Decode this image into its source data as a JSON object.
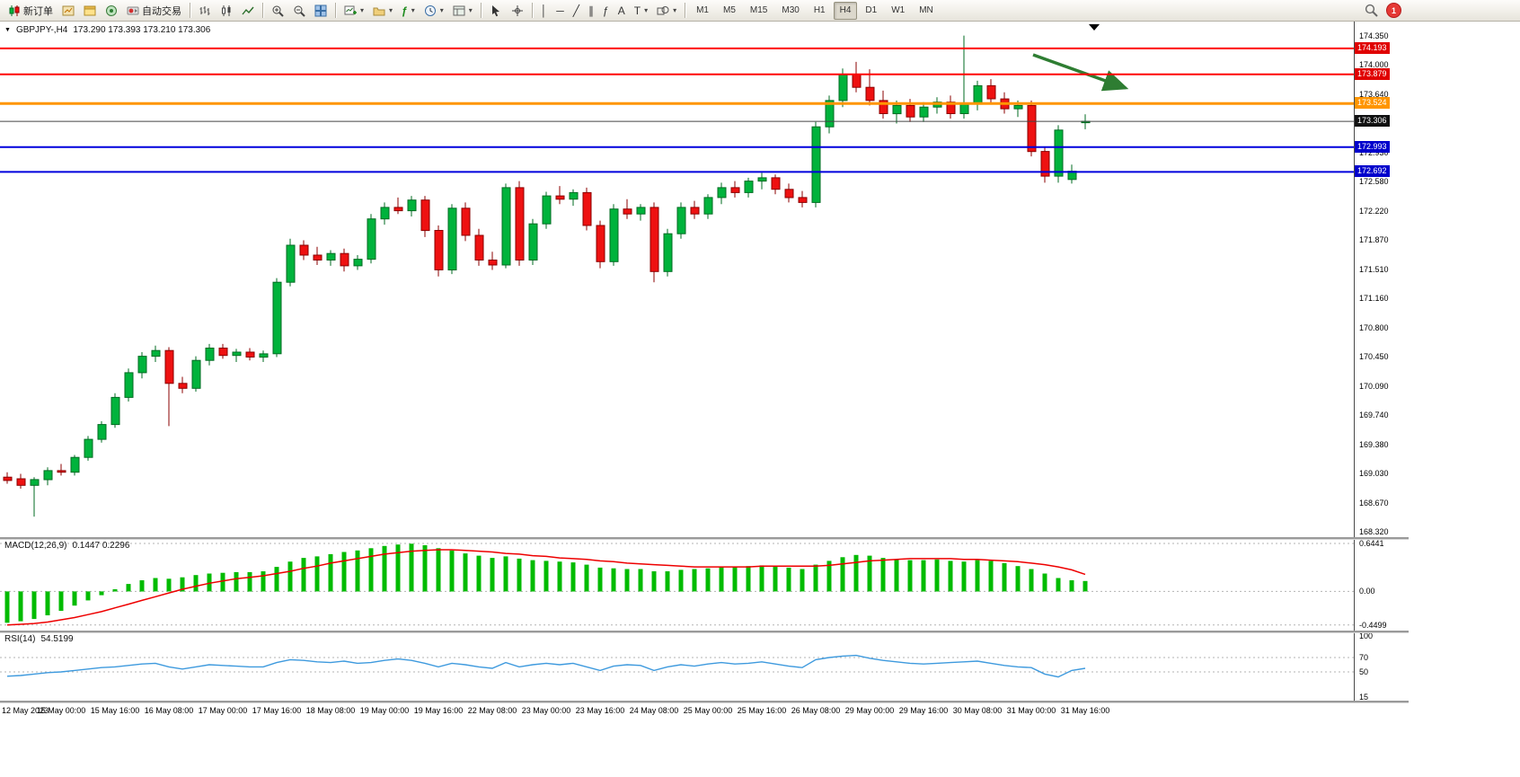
{
  "colors": {
    "candle_up": "#00b33c",
    "candle_up_border": "#006b22",
    "candle_down": "#ee1111",
    "candle_down_border": "#8b0000",
    "macd_histogram": "#00bb00",
    "macd_signal": "#ee0000",
    "rsi_line": "#3e9ade",
    "grid": "#b3b3b3",
    "arrow_annotation": "#2e7d32",
    "line_red": "#ff0000",
    "line_orange": "#ff9500",
    "line_blue": "#0000dd",
    "line_black": "#444444"
  },
  "toolbar": {
    "new_order_label": "新订单",
    "auto_trading_label": "自动交易",
    "timeframes": [
      "M1",
      "M5",
      "M15",
      "M30",
      "H1",
      "H4",
      "D1",
      "W1",
      "MN"
    ],
    "active_timeframe": "H4",
    "notification_count": "1"
  },
  "icons": {
    "caret": "▾",
    "dropdown_triangle": "▼",
    "text_tool": "A",
    "label_tool": "T",
    "vline": "│",
    "hline": "─",
    "trendline": "╱",
    "channel": "∥",
    "fibonacci": "ƒ"
  },
  "chart": {
    "symbol_period": "GBPJPY-,H4",
    "ohlc": "173.290 173.393 173.210 173.306"
  },
  "price_axis": {
    "labels": [
      "174.350",
      "174.000",
      "173.640",
      "173.290",
      "172.930",
      "172.580",
      "172.220",
      "171.870",
      "171.510",
      "171.160",
      "170.800",
      "170.450",
      "170.090",
      "169.740",
      "169.380",
      "169.030",
      "168.670",
      "168.320"
    ]
  },
  "hlines": [
    {
      "price": 174.193,
      "label": "174.193",
      "color": "#ff0000",
      "width": 2,
      "badge_bg": "#e00000"
    },
    {
      "price": 173.879,
      "label": "173.879",
      "color": "#ff0000",
      "width": 2,
      "badge_bg": "#e00000"
    },
    {
      "price": 173.524,
      "label": "173.524",
      "color": "#ff9500",
      "width": 3,
      "badge_bg": "#ff9500"
    },
    {
      "price": 173.306,
      "label": "173.306",
      "color": "#444444",
      "width": 1,
      "badge_bg": "#111111"
    },
    {
      "price": 172.993,
      "label": "172.993",
      "color": "#0000dd",
      "width": 2,
      "badge_bg": "#0000cc"
    },
    {
      "price": 172.692,
      "label": "172.692",
      "color": "#0000dd",
      "width": 2,
      "badge_bg": "#0000cc"
    }
  ],
  "chart_data": {
    "type": "candlestick",
    "symbol": "GBPJPY",
    "timeframe": "H4",
    "price_range_visible": [
      168.32,
      174.35
    ],
    "time_labels": [
      "12 May 2023",
      "15 May 00:00",
      "15 May 16:00",
      "16 May 08:00",
      "17 May 00:00",
      "17 May 16:00",
      "18 May 08:00",
      "19 May 00:00",
      "19 May 16:00",
      "22 May 08:00",
      "23 May 00:00",
      "23 May 16:00",
      "24 May 08:00",
      "25 May 00:00",
      "25 May 16:00",
      "26 May 08:00",
      "29 May 00:00",
      "29 May 16:00",
      "30 May 08:00",
      "31 May 00:00",
      "31 May 16:00"
    ],
    "candles": [
      [
        168.98,
        169.04,
        168.9,
        168.94
      ],
      [
        168.96,
        169.02,
        168.84,
        168.88
      ],
      [
        168.88,
        168.98,
        168.5,
        168.95
      ],
      [
        168.95,
        169.1,
        168.88,
        169.06
      ],
      [
        169.06,
        169.14,
        169.0,
        169.04
      ],
      [
        169.04,
        169.25,
        169.0,
        169.22
      ],
      [
        169.22,
        169.48,
        169.18,
        169.44
      ],
      [
        169.44,
        169.66,
        169.4,
        169.62
      ],
      [
        169.62,
        170.0,
        169.58,
        169.95
      ],
      [
        169.95,
        170.3,
        169.9,
        170.25
      ],
      [
        170.25,
        170.5,
        170.18,
        170.45
      ],
      [
        170.45,
        170.58,
        170.38,
        170.52
      ],
      [
        170.52,
        170.56,
        169.6,
        170.12
      ],
      [
        170.12,
        170.2,
        170.0,
        170.06
      ],
      [
        170.06,
        170.45,
        170.02,
        170.4
      ],
      [
        170.4,
        170.6,
        170.34,
        170.55
      ],
      [
        170.55,
        170.6,
        170.42,
        170.46
      ],
      [
        170.46,
        170.54,
        170.38,
        170.5
      ],
      [
        170.5,
        170.55,
        170.4,
        170.44
      ],
      [
        170.44,
        170.52,
        170.38,
        170.48
      ],
      [
        170.48,
        171.4,
        170.44,
        171.35
      ],
      [
        171.35,
        171.88,
        171.3,
        171.8
      ],
      [
        171.8,
        171.86,
        171.62,
        171.68
      ],
      [
        171.68,
        171.78,
        171.56,
        171.62
      ],
      [
        171.62,
        171.74,
        171.55,
        171.7
      ],
      [
        171.7,
        171.76,
        171.48,
        171.55
      ],
      [
        171.55,
        171.68,
        171.5,
        171.63
      ],
      [
        171.63,
        172.18,
        171.58,
        172.12
      ],
      [
        172.12,
        172.32,
        172.05,
        172.26
      ],
      [
        172.26,
        172.38,
        172.18,
        172.22
      ],
      [
        172.22,
        172.4,
        172.15,
        172.35
      ],
      [
        172.35,
        172.4,
        171.9,
        171.98
      ],
      [
        171.98,
        172.04,
        171.42,
        171.5
      ],
      [
        171.5,
        172.3,
        171.45,
        172.25
      ],
      [
        172.25,
        172.32,
        171.85,
        171.92
      ],
      [
        171.92,
        172.0,
        171.55,
        171.62
      ],
      [
        171.62,
        171.72,
        171.5,
        171.56
      ],
      [
        171.56,
        172.55,
        171.52,
        172.5
      ],
      [
        172.5,
        172.58,
        171.55,
        171.62
      ],
      [
        171.62,
        172.12,
        171.56,
        172.06
      ],
      [
        172.06,
        172.45,
        172.0,
        172.4
      ],
      [
        172.4,
        172.52,
        172.3,
        172.36
      ],
      [
        172.36,
        172.48,
        172.28,
        172.44
      ],
      [
        172.44,
        172.5,
        171.98,
        172.04
      ],
      [
        172.04,
        172.1,
        171.52,
        171.6
      ],
      [
        171.6,
        172.3,
        171.55,
        172.24
      ],
      [
        172.24,
        172.36,
        172.12,
        172.18
      ],
      [
        172.18,
        172.3,
        172.1,
        172.26
      ],
      [
        172.26,
        172.32,
        171.35,
        171.48
      ],
      [
        171.48,
        172.0,
        171.42,
        171.94
      ],
      [
        171.94,
        172.32,
        171.88,
        172.26
      ],
      [
        172.26,
        172.34,
        172.12,
        172.18
      ],
      [
        172.18,
        172.42,
        172.12,
        172.38
      ],
      [
        172.38,
        172.56,
        172.3,
        172.5
      ],
      [
        172.5,
        172.58,
        172.38,
        172.44
      ],
      [
        172.44,
        172.62,
        172.38,
        172.58
      ],
      [
        172.58,
        172.68,
        172.48,
        172.62
      ],
      [
        172.62,
        172.66,
        172.42,
        172.48
      ],
      [
        172.48,
        172.55,
        172.32,
        172.38
      ],
      [
        172.38,
        172.46,
        172.26,
        172.32
      ],
      [
        172.32,
        173.3,
        172.26,
        173.24
      ],
      [
        173.24,
        173.62,
        173.16,
        173.56
      ],
      [
        173.56,
        173.95,
        173.48,
        173.88
      ],
      [
        173.88,
        174.03,
        173.66,
        173.72
      ],
      [
        173.72,
        173.94,
        173.5,
        173.56
      ],
      [
        173.56,
        173.68,
        173.34,
        173.4
      ],
      [
        173.4,
        173.56,
        173.28,
        173.5
      ],
      [
        173.5,
        173.58,
        173.3,
        173.36
      ],
      [
        173.36,
        173.54,
        173.3,
        173.48
      ],
      [
        173.48,
        173.6,
        173.4,
        173.54
      ],
      [
        173.54,
        173.62,
        173.34,
        173.4
      ],
      [
        173.4,
        174.35,
        173.34,
        173.52
      ],
      [
        173.52,
        173.8,
        173.44,
        173.74
      ],
      [
        173.74,
        173.82,
        173.52,
        173.58
      ],
      [
        173.58,
        173.66,
        173.4,
        173.46
      ],
      [
        173.46,
        173.56,
        173.36,
        173.5
      ],
      [
        173.5,
        173.56,
        172.88,
        172.94
      ],
      [
        172.94,
        173.0,
        172.56,
        172.64
      ],
      [
        172.64,
        173.26,
        172.56,
        173.2
      ],
      [
        172.6,
        172.78,
        172.55,
        172.7
      ],
      [
        173.29,
        173.393,
        173.21,
        173.306
      ]
    ],
    "macd": {
      "label": "MACD(12,26,9)",
      "values_text": "0.1447 0.2296",
      "axis_labels": [
        "0.6441",
        "0.00",
        "-0.4499"
      ],
      "grid_values": [
        0.6441,
        0,
        -0.4499
      ],
      "histogram": [
        -0.42,
        -0.4,
        -0.37,
        -0.32,
        -0.26,
        -0.19,
        -0.12,
        -0.05,
        0.03,
        0.1,
        0.15,
        0.18,
        0.17,
        0.19,
        0.22,
        0.24,
        0.25,
        0.26,
        0.26,
        0.27,
        0.33,
        0.4,
        0.45,
        0.47,
        0.5,
        0.53,
        0.55,
        0.58,
        0.61,
        0.63,
        0.64,
        0.62,
        0.58,
        0.55,
        0.51,
        0.48,
        0.45,
        0.47,
        0.44,
        0.42,
        0.41,
        0.4,
        0.39,
        0.36,
        0.32,
        0.31,
        0.3,
        0.3,
        0.27,
        0.27,
        0.29,
        0.3,
        0.31,
        0.33,
        0.33,
        0.34,
        0.35,
        0.34,
        0.32,
        0.3,
        0.36,
        0.41,
        0.46,
        0.49,
        0.48,
        0.45,
        0.43,
        0.42,
        0.42,
        0.43,
        0.41,
        0.4,
        0.42,
        0.41,
        0.38,
        0.34,
        0.3,
        0.24,
        0.18,
        0.15,
        0.14
      ],
      "signal": [
        -0.45,
        -0.44,
        -0.43,
        -0.41,
        -0.38,
        -0.35,
        -0.31,
        -0.27,
        -0.22,
        -0.17,
        -0.12,
        -0.07,
        -0.02,
        0.03,
        0.07,
        0.11,
        0.14,
        0.17,
        0.19,
        0.21,
        0.24,
        0.27,
        0.31,
        0.34,
        0.38,
        0.41,
        0.44,
        0.47,
        0.5,
        0.52,
        0.54,
        0.55,
        0.56,
        0.56,
        0.55,
        0.54,
        0.53,
        0.51,
        0.5,
        0.48,
        0.47,
        0.45,
        0.44,
        0.43,
        0.41,
        0.4,
        0.38,
        0.37,
        0.36,
        0.35,
        0.34,
        0.33,
        0.33,
        0.33,
        0.33,
        0.33,
        0.34,
        0.34,
        0.34,
        0.34,
        0.34,
        0.35,
        0.37,
        0.39,
        0.41,
        0.42,
        0.43,
        0.44,
        0.44,
        0.44,
        0.44,
        0.43,
        0.43,
        0.42,
        0.41,
        0.4,
        0.38,
        0.36,
        0.33,
        0.29,
        0.23
      ]
    },
    "rsi": {
      "label": "RSI(14)",
      "value_text": "54.5199",
      "axis_labels": [
        "100",
        "70",
        "50",
        "15"
      ],
      "axis_values": [
        100,
        70,
        50,
        15
      ],
      "levels": [
        70,
        50
      ],
      "series": [
        44,
        45,
        47,
        49,
        50,
        52,
        54,
        56,
        57,
        59,
        61,
        62,
        57,
        54,
        57,
        60,
        59,
        58,
        57,
        57,
        63,
        67,
        66,
        64,
        63,
        65,
        62,
        63,
        66,
        68,
        66,
        62,
        57,
        62,
        60,
        57,
        55,
        63,
        57,
        60,
        62,
        60,
        62,
        57,
        52,
        58,
        60,
        59,
        52,
        57,
        60,
        58,
        61,
        63,
        61,
        62,
        64,
        61,
        58,
        56,
        67,
        70,
        72,
        73,
        69,
        66,
        64,
        62,
        61,
        62,
        63,
        64,
        65,
        62,
        59,
        57,
        56,
        47,
        43,
        52,
        55
      ]
    }
  }
}
